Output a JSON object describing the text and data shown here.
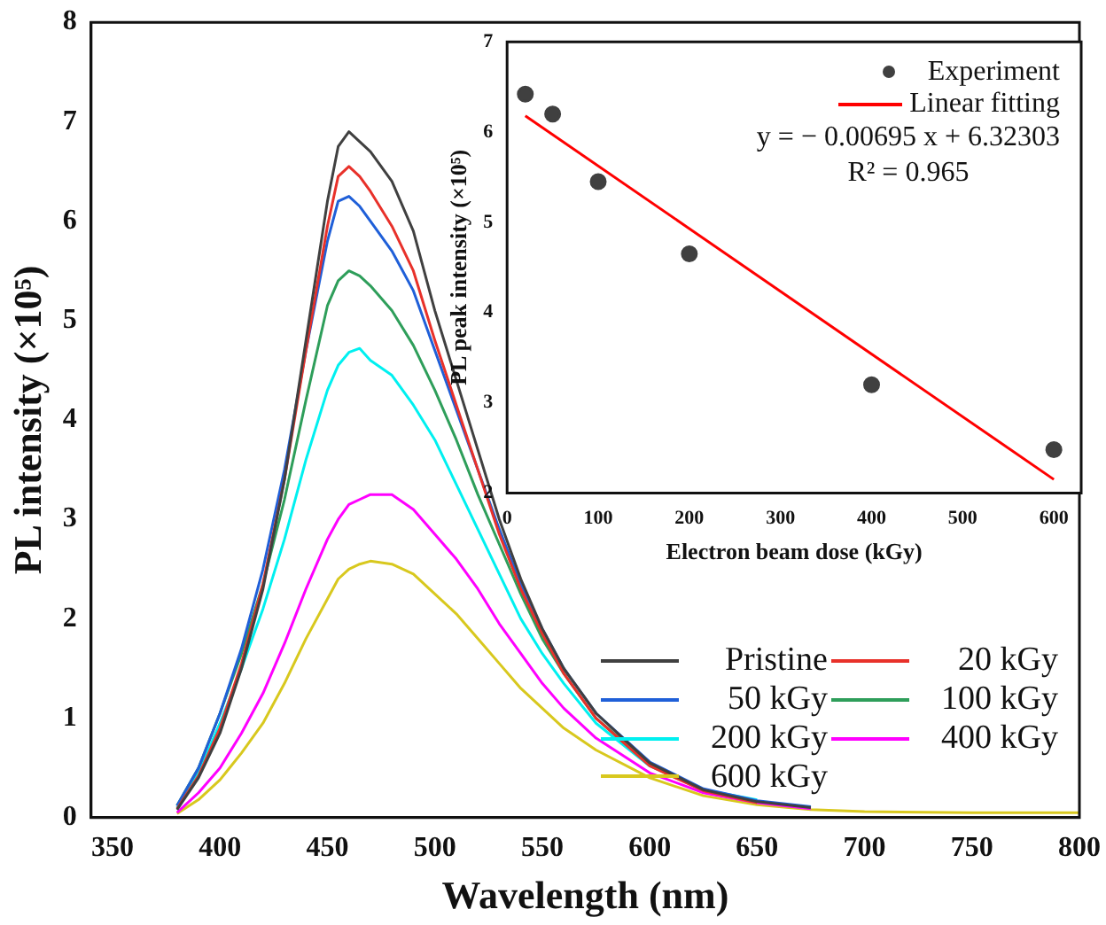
{
  "chart_data": [
    {
      "type": "line",
      "xlabel": "Wavelength (nm)",
      "ylabel": "PL intensity (×10⁵)",
      "x": [
        380,
        390,
        400,
        410,
        420,
        430,
        440,
        450,
        455,
        460,
        465,
        470,
        480,
        490,
        500,
        510,
        520,
        530,
        540,
        550,
        560,
        575,
        600,
        625,
        650,
        675,
        700,
        750,
        800
      ],
      "series": [
        {
          "name": "Pristine",
          "color": "#404040",
          "values": [
            0.08,
            0.4,
            0.85,
            1.5,
            2.3,
            3.4,
            4.8,
            6.2,
            6.75,
            6.9,
            6.8,
            6.7,
            6.4,
            5.9,
            5.1,
            4.4,
            3.7,
            3.0,
            2.4,
            1.9,
            1.5,
            1.05,
            0.55,
            0.28,
            0.16,
            0.1,
            null,
            null,
            null
          ]
        },
        {
          "name": "20 kGy",
          "color": "#e8312a",
          "values": [
            0.09,
            0.42,
            0.9,
            1.55,
            2.35,
            3.4,
            4.7,
            5.95,
            6.45,
            6.55,
            6.45,
            6.3,
            5.95,
            5.5,
            4.8,
            4.15,
            3.5,
            2.85,
            2.3,
            1.85,
            1.45,
            1.0,
            0.52,
            0.27,
            0.15,
            null,
            null,
            null,
            null
          ]
        },
        {
          "name": "50 kGy",
          "color": "#1f5fd8",
          "values": [
            0.12,
            0.5,
            1.05,
            1.7,
            2.5,
            3.5,
            4.7,
            5.8,
            6.2,
            6.25,
            6.15,
            6.0,
            5.7,
            5.3,
            4.7,
            4.1,
            3.5,
            2.9,
            2.35,
            1.9,
            1.5,
            1.05,
            0.56,
            0.29,
            0.17,
            0.11,
            null,
            null,
            null
          ]
        },
        {
          "name": "100 kGy",
          "color": "#2e9e5a",
          "values": [
            0.12,
            0.5,
            1.05,
            1.65,
            2.35,
            3.2,
            4.2,
            5.15,
            5.4,
            5.5,
            5.45,
            5.35,
            5.1,
            4.75,
            4.3,
            3.8,
            3.25,
            2.75,
            2.25,
            1.8,
            1.45,
            1.0,
            0.54,
            0.28,
            null,
            null,
            null,
            null,
            null
          ]
        },
        {
          "name": "200 kGy",
          "color": "#00f0f0",
          "values": [
            0.1,
            0.45,
            0.95,
            1.5,
            2.1,
            2.8,
            3.6,
            4.3,
            4.55,
            4.68,
            4.72,
            4.6,
            4.45,
            4.15,
            3.8,
            3.35,
            2.9,
            2.45,
            2.0,
            1.65,
            1.35,
            0.95,
            0.52,
            0.28,
            0.18,
            null,
            null,
            null,
            null
          ]
        },
        {
          "name": "400 kGy",
          "color": "#ff00ff",
          "values": [
            0.05,
            0.25,
            0.5,
            0.85,
            1.25,
            1.75,
            2.3,
            2.8,
            3.0,
            3.15,
            3.2,
            3.25,
            3.25,
            3.1,
            2.85,
            2.6,
            2.3,
            1.95,
            1.65,
            1.35,
            1.1,
            0.8,
            0.45,
            0.25,
            0.15,
            0.09,
            null,
            null,
            null
          ]
        },
        {
          "name": "600 kGy",
          "color": "#d8c81e",
          "values": [
            0.04,
            0.18,
            0.38,
            0.65,
            0.95,
            1.35,
            1.8,
            2.2,
            2.4,
            2.5,
            2.55,
            2.58,
            2.55,
            2.45,
            2.25,
            2.05,
            1.8,
            1.55,
            1.3,
            1.1,
            0.9,
            0.68,
            0.4,
            0.22,
            0.13,
            0.08,
            0.06,
            0.05,
            0.05
          ]
        }
      ],
      "xlim": [
        340,
        800
      ],
      "xticks": [
        350,
        400,
        450,
        500,
        550,
        600,
        650,
        700,
        750,
        800
      ],
      "ylim": [
        0,
        8
      ],
      "yticks": [
        0,
        1,
        2,
        3,
        4,
        5,
        6,
        7,
        8
      ],
      "legend": "bottom right"
    },
    {
      "type": "scatter",
      "xlabel": "Electron beam dose (kGy)",
      "ylabel": "PL peak intensity (×10⁵)",
      "series": [
        {
          "name": "Experiment",
          "type": "scatter",
          "marker": "circle",
          "color": "#404040",
          "x": [
            20,
            50,
            100,
            200,
            400,
            600
          ],
          "values": [
            6.42,
            6.2,
            5.45,
            4.65,
            3.2,
            2.48
          ]
        },
        {
          "name": "Linear fitting",
          "type": "line",
          "color": "#ff0000",
          "x": [
            20,
            600
          ],
          "values": [
            6.18,
            2.15
          ]
        }
      ],
      "xlim": [
        0,
        630
      ],
      "xticks": [
        0,
        100,
        200,
        300,
        400,
        500,
        600
      ],
      "ylim": [
        2,
        7
      ],
      "yticks": [
        2,
        3,
        4,
        5,
        6,
        7
      ],
      "legend": "top right",
      "annotations": [
        "y = − 0.00695 x + 6.32303",
        "R² = 0.965"
      ]
    }
  ]
}
